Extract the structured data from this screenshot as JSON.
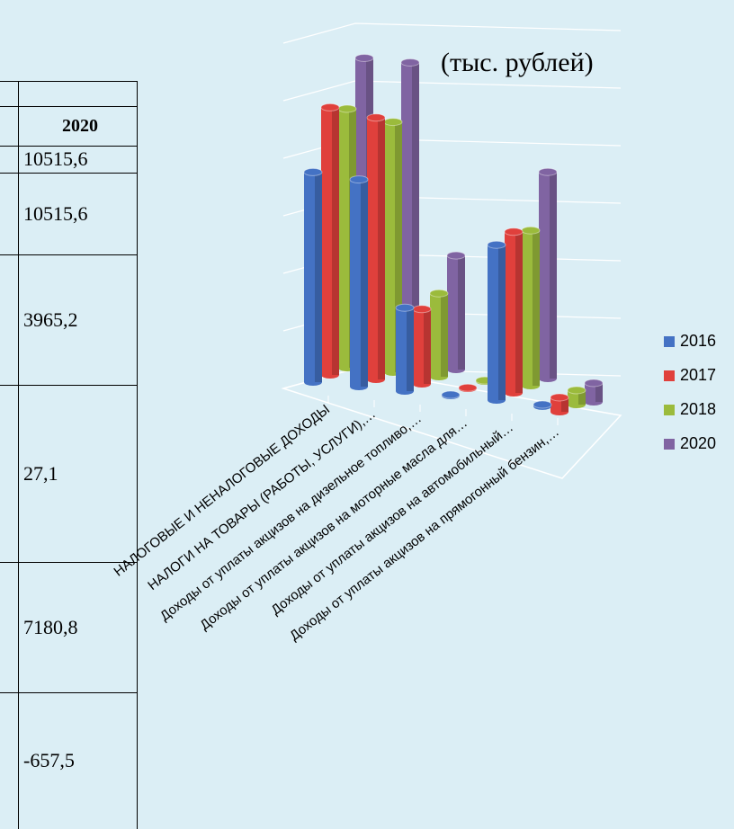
{
  "table": {
    "header": "2020",
    "rows": [
      "10515,6",
      "10515,6",
      "3965,2",
      "27,1",
      "7180,8",
      "-657,5"
    ]
  },
  "chart_data": {
    "type": "bar3d",
    "subtitle": "(тыс. рублей)",
    "categories": [
      "НАЛОГОВЫЕ И НЕНАЛОГОВЫЕ ДОХОДЫ",
      "НАЛОГИ НА ТОВАРЫ (РАБОТЫ, УСЛУГИ),…",
      "Доходы от уплаты акцизов на дизельное топливо,…",
      "Доходы от уплаты акцизов на моторные масла для…",
      "Доходы от уплаты акцизов на автомобильный…",
      "Доходы от уплаты акцизов на прямогонный бензин,…"
    ],
    "series": [
      {
        "name": "2016",
        "color": "#4472c4",
        "values": [
          7300,
          7200,
          2900,
          30,
          5400,
          -60
        ]
      },
      {
        "name": "2017",
        "color": "#e0403c",
        "values": [
          9300,
          9100,
          2600,
          25,
          5600,
          -500
        ]
      },
      {
        "name": "2018",
        "color": "#9bbb3c",
        "values": [
          9000,
          8700,
          2900,
          28,
          5400,
          -500
        ]
      },
      {
        "name": "2020",
        "color": "#8064a2",
        "values": [
          10515.6,
          10515.6,
          3965.2,
          27.1,
          7180.8,
          -657.5
        ]
      }
    ],
    "ylim": [
      0,
      12000
    ],
    "yticks": [
      0,
      2000,
      4000,
      6000,
      8000,
      10000,
      12000
    ],
    "grid": true,
    "legend": "right"
  }
}
